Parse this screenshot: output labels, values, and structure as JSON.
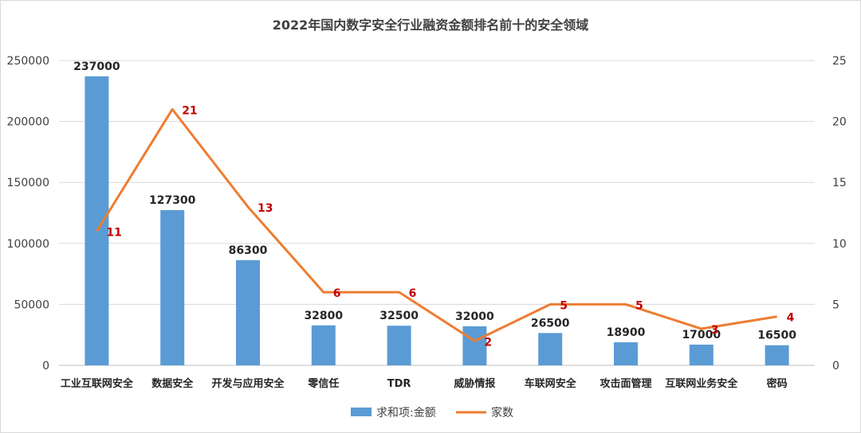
{
  "chart_data": {
    "type": "bar+line",
    "title": "2022年国内数字安全行业融资金额排名前十的安全领域",
    "categories": [
      "工业互联网安全",
      "数据安全",
      "开发与应用安全",
      "零信任",
      "TDR",
      "威胁情报",
      "车联网安全",
      "攻击面管理",
      "互联网业务安全",
      "密码"
    ],
    "series": [
      {
        "name": "求和项:金额",
        "type": "bar",
        "axis": "left",
        "color": "#5b9bd5",
        "values": [
          237000,
          127300,
          86300,
          32800,
          32500,
          32000,
          26500,
          18900,
          17000,
          16500
        ]
      },
      {
        "name": "家数",
        "type": "line",
        "axis": "right",
        "color": "#ed7d31",
        "values": [
          11,
          21,
          13,
          6,
          6,
          2,
          5,
          5,
          3,
          4
        ]
      }
    ],
    "y_left": {
      "min": 0,
      "max": 250000,
      "ticks": [
        "0",
        "50000",
        "100000",
        "150000",
        "200000",
        "250000"
      ]
    },
    "y_right": {
      "min": 0,
      "max": 25,
      "ticks": [
        "0",
        "5",
        "10",
        "15",
        "20",
        "25"
      ]
    },
    "grid": true,
    "legend": "bottom"
  }
}
